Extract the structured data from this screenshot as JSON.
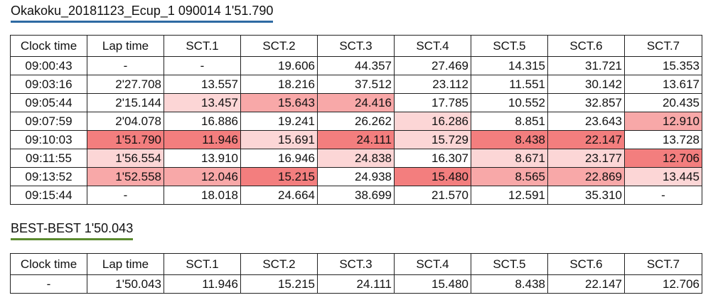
{
  "session_title": "Okakoku_20181123_Ecup_1 090014 1'51.790",
  "best_title": "BEST-BEST 1'50.043",
  "columns": [
    "Clock time",
    "Lap time",
    "SCT.1",
    "SCT.2",
    "SCT.3",
    "SCT.4",
    "SCT.5",
    "SCT.6",
    "SCT.7"
  ],
  "shade_colors": {
    "none": "#ffffff",
    "light": "#fcd6d6",
    "medium": "#f8a8a8",
    "dark": "#f37e7e"
  },
  "laps": [
    {
      "cells": [
        "09:00:43",
        "-",
        "-",
        "19.606",
        "44.357",
        "27.469",
        "14.315",
        "31.721",
        "15.353"
      ],
      "shade": [
        "none",
        "none",
        "none",
        "none",
        "none",
        "none",
        "none",
        "none",
        "none"
      ]
    },
    {
      "cells": [
        "09:03:16",
        "2'27.708",
        "13.557",
        "18.216",
        "37.512",
        "23.112",
        "11.551",
        "30.142",
        "13.617"
      ],
      "shade": [
        "none",
        "none",
        "none",
        "none",
        "none",
        "none",
        "none",
        "none",
        "none"
      ]
    },
    {
      "cells": [
        "09:05:44",
        "2'15.144",
        "13.457",
        "15.643",
        "24.416",
        "17.785",
        "10.552",
        "32.857",
        "20.435"
      ],
      "shade": [
        "none",
        "none",
        "light",
        "medium",
        "medium",
        "none",
        "none",
        "none",
        "none"
      ]
    },
    {
      "cells": [
        "09:07:59",
        "2'04.078",
        "16.886",
        "19.241",
        "26.262",
        "16.286",
        "8.851",
        "23.643",
        "12.910"
      ],
      "shade": [
        "none",
        "none",
        "none",
        "none",
        "none",
        "light",
        "none",
        "none",
        "medium"
      ]
    },
    {
      "cells": [
        "09:10:03",
        "1'51.790",
        "11.946",
        "15.691",
        "24.111",
        "15.729",
        "8.438",
        "22.147",
        "13.728"
      ],
      "shade": [
        "none",
        "dark",
        "dark",
        "light",
        "dark",
        "light",
        "dark",
        "dark",
        "none"
      ]
    },
    {
      "cells": [
        "09:11:55",
        "1'56.554",
        "13.910",
        "16.946",
        "24.838",
        "16.307",
        "8.671",
        "23.177",
        "12.706"
      ],
      "shade": [
        "none",
        "light",
        "none",
        "none",
        "light",
        "none",
        "light",
        "light",
        "dark"
      ]
    },
    {
      "cells": [
        "09:13:52",
        "1'52.558",
        "12.046",
        "15.215",
        "24.938",
        "15.480",
        "8.565",
        "22.869",
        "13.445"
      ],
      "shade": [
        "none",
        "medium",
        "medium",
        "dark",
        "none",
        "dark",
        "medium",
        "medium",
        "light"
      ]
    },
    {
      "cells": [
        "09:15:44",
        "-",
        "18.018",
        "24.664",
        "38.699",
        "21.570",
        "12.591",
        "35.310",
        "-"
      ],
      "shade": [
        "none",
        "none",
        "none",
        "none",
        "none",
        "none",
        "none",
        "none",
        "none"
      ]
    }
  ],
  "best": {
    "cells": [
      "-",
      "1'50.043",
      "11.946",
      "15.215",
      "24.111",
      "15.480",
      "8.438",
      "22.147",
      "12.706"
    ]
  }
}
